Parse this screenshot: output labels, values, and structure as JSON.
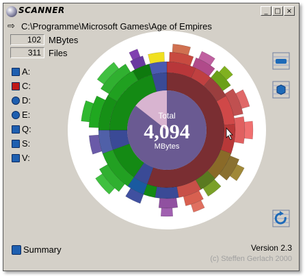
{
  "window": {
    "title": "SCANNER",
    "minimize_glyph": "_",
    "maximize_glyph": "□",
    "close_glyph": "×"
  },
  "path": {
    "arrow": "⇨",
    "text": "C:\\Programme\\Microsoft Games\\Age of Empires"
  },
  "stats": {
    "size_value": "102",
    "size_unit": "MBytes",
    "files_value": "311",
    "files_unit": "Files"
  },
  "drives": [
    {
      "label": "A:",
      "icon": "floppy-icon",
      "color": "#1e5fb0"
    },
    {
      "label": "C:",
      "icon": "harddisk-icon",
      "color": "#c01818"
    },
    {
      "label": "D:",
      "icon": "cdrom-icon",
      "color": "#1e5fb0"
    },
    {
      "label": "E:",
      "icon": "cdrom-icon",
      "color": "#1e5fb0"
    },
    {
      "label": "Q:",
      "icon": "network-drive-icon",
      "color": "#1e5fb0"
    },
    {
      "label": "S:",
      "icon": "network-drive-icon",
      "color": "#1e5fb0"
    },
    {
      "label": "V:",
      "icon": "network-drive-icon",
      "color": "#1e5fb0"
    }
  ],
  "center": {
    "label": "Total",
    "value": "4,094",
    "unit": "MBytes"
  },
  "summary_label": "Summary",
  "version": "Version 2.3",
  "copyright": "(c) Steffen Gerlach 2000",
  "colors": {
    "window_bg": "#d4d0c8",
    "center_disk": "#6a5a92",
    "center_highlight": "#d8b4d0",
    "red_segment": "#7a2e32",
    "blue_segment": "#3a4a96",
    "green_segment": "#1a8a1a"
  }
}
